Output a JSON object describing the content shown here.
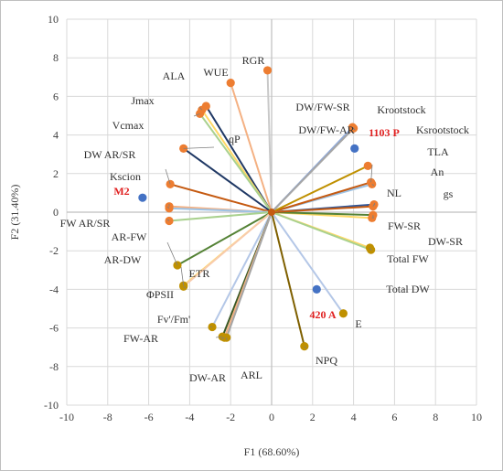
{
  "chart_data": {
    "type": "scatter",
    "xlabel": "F1 (68.60%)",
    "ylabel": "F2 (31.40%)",
    "xlim": [
      -10,
      10
    ],
    "ylim": [
      -10,
      10
    ],
    "xticks": [
      "-10",
      "-8",
      "-6",
      "-4",
      "-2",
      "0",
      "2",
      "4",
      "6",
      "8",
      "10"
    ],
    "yticks": [
      "-10",
      "-8",
      "-6",
      "-4",
      "-2",
      "0",
      "2",
      "4",
      "6",
      "8",
      "10"
    ],
    "grid": true,
    "legend": "none",
    "variables": [
      {
        "name": "RGR",
        "x": -0.2,
        "y": 7.35,
        "color": "#ED7D31",
        "line": "#C9C9C9"
      },
      {
        "name": "WUE",
        "x": -2.0,
        "y": 6.7,
        "color": "#ED7D31",
        "line": "#F4B183"
      },
      {
        "name": "ALA",
        "x": -3.2,
        "y": 5.5,
        "color": "#ED7D31",
        "line": "#1F3864"
      },
      {
        "name": "Jmax",
        "x": -3.4,
        "y": 5.3,
        "color": "#ED7D31",
        "line": "#FFD966"
      },
      {
        "name": "Vcmax",
        "x": -3.5,
        "y": 5.1,
        "color": "#ED7D31",
        "line": "#A9D18E"
      },
      {
        "name": "qP",
        "x": -4.3,
        "y": 3.3,
        "color": "#ED7D31",
        "line": "#1F3864"
      },
      {
        "name": "DW AR/SR",
        "x": -4.95,
        "y": 1.45,
        "color": "#ED7D31",
        "line": "#C55A11"
      },
      {
        "name": "Kscion",
        "x": -5.0,
        "y": 0.3,
        "color": "#ED7D31",
        "line": "#F4B183"
      },
      {
        "name": "FW AR/SR",
        "x": -5.0,
        "y": 0.2,
        "color": "#ED7D31",
        "line": "#9DC3E6"
      },
      {
        "name": "AR-FW",
        "x": -5.0,
        "y": -0.45,
        "color": "#ED7D31",
        "line": "#A9D18E"
      },
      {
        "name": "AR-DW",
        "x": -4.6,
        "y": -2.75,
        "color": "#BF9000",
        "line": "#548235"
      },
      {
        "name": "ETR",
        "x": -4.3,
        "y": -3.8,
        "color": "#BF9000",
        "line": "#FFD966"
      },
      {
        "name": "ΦPSII",
        "x": -4.3,
        "y": -3.85,
        "color": "#BF9000",
        "line": "#F8CBAD"
      },
      {
        "name": "Fv'/Fm'",
        "x": -2.9,
        "y": -5.95,
        "color": "#BF9000",
        "line": "#B4C7E7"
      },
      {
        "name": "FW-AR",
        "x": -2.4,
        "y": -6.45,
        "color": "#BF9000",
        "line": "#385723"
      },
      {
        "name": "DW-AR",
        "x": -2.3,
        "y": -6.5,
        "color": "#BF9000",
        "line": "#F4B183"
      },
      {
        "name": "ARL",
        "x": -2.2,
        "y": -6.5,
        "color": "#BF9000",
        "line": "#A5A5A5"
      },
      {
        "name": "NPQ",
        "x": 1.6,
        "y": -6.95,
        "color": "#BF9000",
        "line": "#7F6000"
      },
      {
        "name": "E",
        "x": 3.5,
        "y": -5.25,
        "color": "#BF9000",
        "line": "#B4C7E7"
      },
      {
        "name": "Total DW",
        "x": 4.8,
        "y": -1.85,
        "color": "#BF9000",
        "line": "#FFD966"
      },
      {
        "name": "Total FW",
        "x": 4.85,
        "y": -1.95,
        "color": "#BF9000",
        "line": "#A9D18E"
      },
      {
        "name": "DW-SR",
        "x": 4.9,
        "y": -0.3,
        "color": "#ED7D31",
        "line": "#FFD966"
      },
      {
        "name": "FW-SR",
        "x": 4.95,
        "y": -0.15,
        "color": "#ED7D31",
        "line": "#548235"
      },
      {
        "name": "gs",
        "x": 5.0,
        "y": 0.4,
        "color": "#ED7D31",
        "line": "#2F5597"
      },
      {
        "name": "NL",
        "x": 4.95,
        "y": 0.3,
        "color": "#ED7D31",
        "line": "#C55A11"
      },
      {
        "name": "An",
        "x": 4.9,
        "y": 1.45,
        "color": "#ED7D31",
        "line": "#9DC3E6"
      },
      {
        "name": "TLA",
        "x": 4.85,
        "y": 1.55,
        "color": "#ED7D31",
        "line": "#C55A11"
      },
      {
        "name": "Ksrootstock",
        "x": 4.7,
        "y": 2.4,
        "color": "#ED7D31",
        "line": "#BF9000"
      },
      {
        "name": "Krootstock",
        "x": 3.95,
        "y": 4.35,
        "color": "#ED7D31",
        "line": "#A6A6A6"
      },
      {
        "name": "DW/FW-AR",
        "x": 3.95,
        "y": 4.4,
        "color": "#ED7D31",
        "line": "#8FAADC"
      },
      {
        "name": "DW/FW-SR",
        "x": 4.0,
        "y": 4.35,
        "color": "#ED7D31",
        "line": "#A6A6A6"
      }
    ],
    "groups": [
      {
        "name": "M2",
        "x": -6.3,
        "y": 0.75,
        "color": "#4472C4"
      },
      {
        "name": "1103 P",
        "x": 4.05,
        "y": 3.3,
        "color": "#4472C4"
      },
      {
        "name": "420 A",
        "x": 2.2,
        "y": -4.0,
        "color": "#4472C4"
      }
    ]
  }
}
